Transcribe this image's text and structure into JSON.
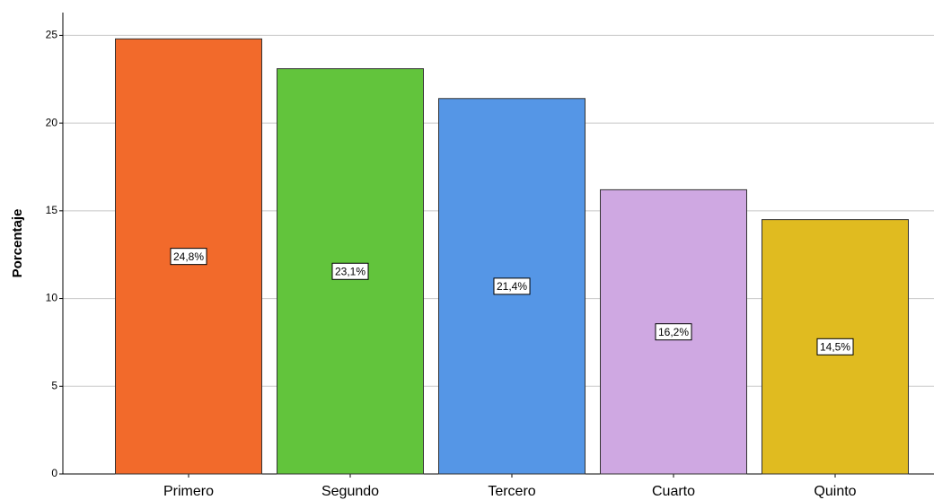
{
  "chart_data": {
    "type": "bar",
    "y_label": "Porcentaje",
    "categories": [
      "Primero",
      "Segundo",
      "Tercero",
      "Cuarto",
      "Quinto"
    ],
    "values": [
      24.8,
      23.1,
      21.4,
      16.2,
      14.5
    ],
    "value_labels": [
      "24,8%",
      "23,1%",
      "21,4%",
      "16,2%",
      "14,5%"
    ],
    "colors": [
      "#f26a2b",
      "#62c43c",
      "#5596e6",
      "#cfa8e2",
      "#e0bb20"
    ],
    "ylim": [
      0,
      26.3
    ],
    "yticks": [
      0,
      5,
      10,
      15,
      20,
      25
    ],
    "grid": true
  }
}
